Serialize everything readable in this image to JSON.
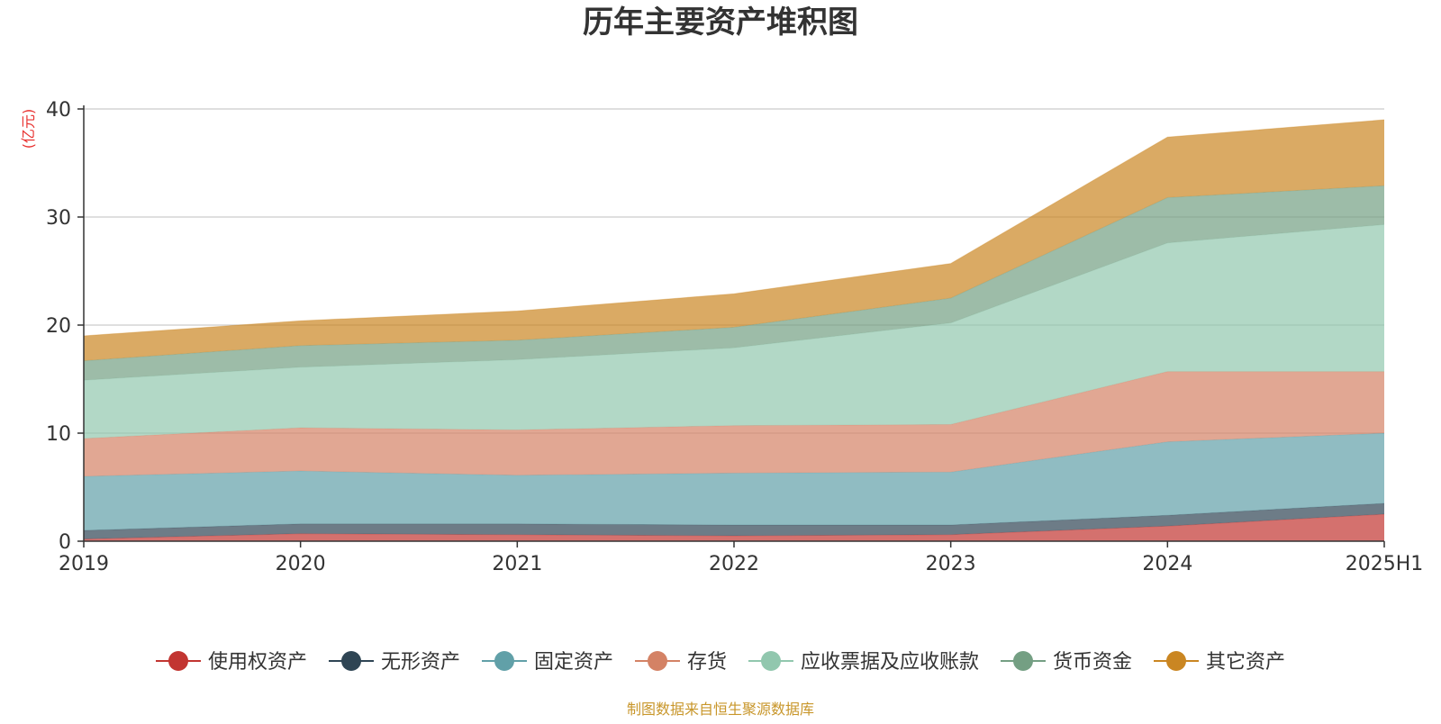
{
  "chart_data": {
    "type": "area",
    "stacked": true,
    "title": "历年主要资产堆积图",
    "y_unit": "(亿元)",
    "source_note": "制图数据来自恒生聚源数据库",
    "categories": [
      "2019",
      "2020",
      "2021",
      "2022",
      "2023",
      "2024",
      "2025H1"
    ],
    "ylim": [
      0,
      40
    ],
    "yticks": [
      0,
      10,
      20,
      30,
      40
    ],
    "grid": true,
    "legend_position": "bottom",
    "series": [
      {
        "name": "使用权资产",
        "color": "#c23531",
        "values": [
          0.2,
          0.7,
          0.6,
          0.5,
          0.6,
          1.4,
          2.5
        ]
      },
      {
        "name": "无形资产",
        "color": "#2f4554",
        "values": [
          0.8,
          0.9,
          1.0,
          1.0,
          0.9,
          1.0,
          1.0
        ]
      },
      {
        "name": "固定资产",
        "color": "#61a0a8",
        "values": [
          5.0,
          4.9,
          4.5,
          4.8,
          4.9,
          6.8,
          6.5
        ]
      },
      {
        "name": "存货",
        "color": "#d48265",
        "values": [
          3.5,
          4.0,
          4.2,
          4.4,
          4.4,
          6.5,
          5.7
        ]
      },
      {
        "name": "应收票据及应收账款",
        "color": "#91c7ae",
        "values": [
          5.4,
          5.6,
          6.5,
          7.2,
          9.4,
          11.9,
          13.6
        ]
      },
      {
        "name": "货币资金",
        "color": "#749f83",
        "values": [
          1.8,
          2.0,
          1.8,
          1.9,
          2.3,
          4.2,
          3.6
        ]
      },
      {
        "name": "其它资产",
        "color": "#ca8622",
        "values": [
          2.3,
          2.3,
          2.7,
          3.1,
          3.2,
          5.6,
          6.1
        ]
      }
    ]
  }
}
